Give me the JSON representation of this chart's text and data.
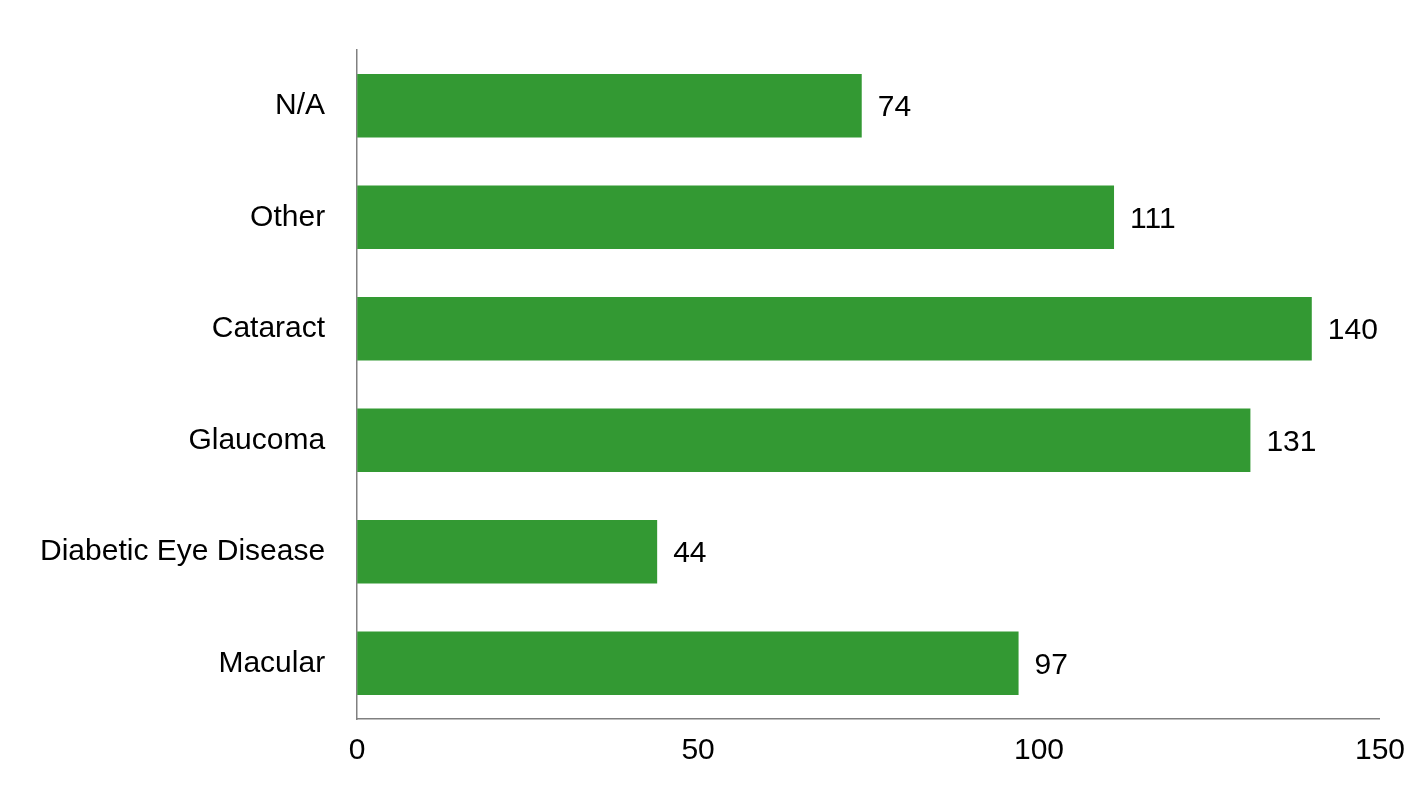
{
  "chart_data": {
    "type": "bar",
    "orientation": "horizontal",
    "categories": [
      "N/A",
      "Other",
      "Cataract",
      "Glaucoma",
      "Diabetic Eye Disease",
      "Macular"
    ],
    "values": [
      74,
      111,
      140,
      131,
      44,
      97
    ],
    "color": "#339933",
    "xlim": [
      0,
      150
    ],
    "xticks": [
      0,
      50,
      100,
      150
    ],
    "grid": false,
    "data_labels": true,
    "legend": false
  }
}
